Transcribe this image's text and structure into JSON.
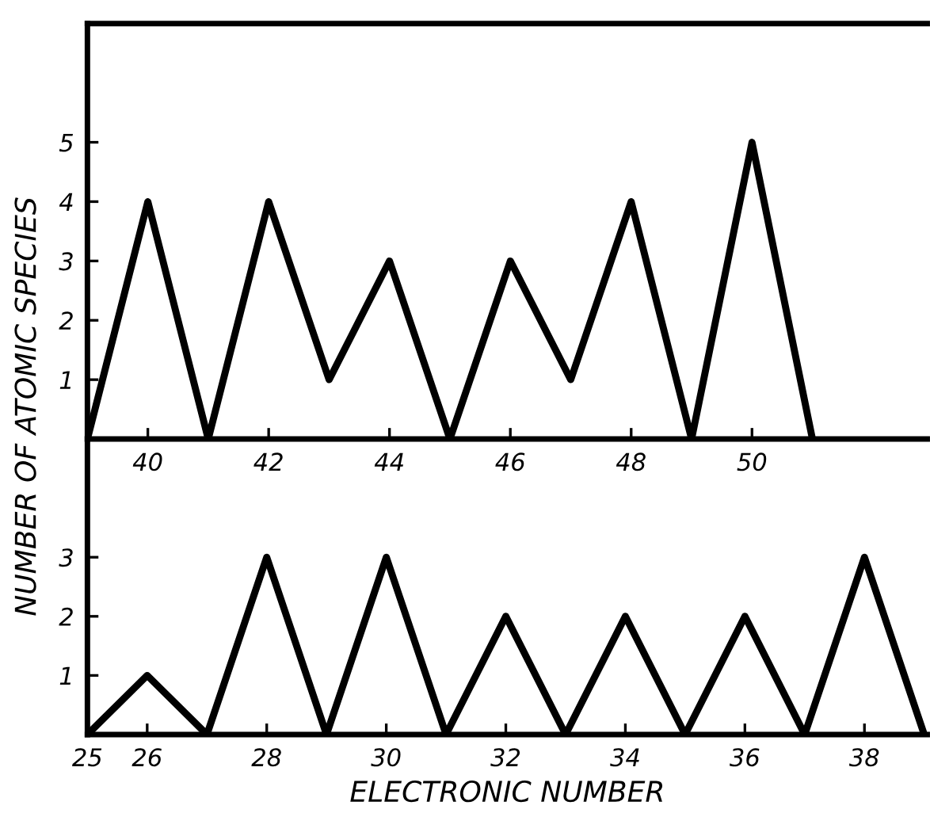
{
  "chart_data": [
    {
      "type": "line",
      "ylabel": "NUMBER OF ATOMIC SPECIES",
      "x": [
        39,
        40,
        41,
        42,
        43,
        44,
        45,
        46,
        47,
        48,
        49,
        50,
        51
      ],
      "series": [
        {
          "color": "#000000",
          "values": [
            0,
            4,
            0,
            4,
            1,
            3,
            0,
            3,
            1,
            4,
            0,
            5,
            0
          ]
        }
      ],
      "xlim": [
        39,
        52.9
      ],
      "ylim": [
        0,
        7
      ],
      "xticks": [
        40,
        42,
        44,
        46,
        48,
        50
      ],
      "yticks": [
        1,
        2,
        3,
        4,
        5
      ],
      "grid": false,
      "legend": false,
      "marker": "none",
      "line_style": "solid"
    },
    {
      "type": "line",
      "xlabel": "ELECTRONIC NUMBER",
      "x": [
        25,
        26,
        27,
        28,
        29,
        30,
        31,
        32,
        33,
        34,
        35,
        36,
        37,
        38,
        39
      ],
      "series": [
        {
          "color": "#000000",
          "values": [
            0,
            1,
            0,
            3,
            0,
            3,
            0,
            2,
            0,
            2,
            0,
            2,
            0,
            3,
            0
          ]
        }
      ],
      "xlim": [
        25,
        39.05
      ],
      "ylim": [
        0,
        5
      ],
      "xticks": [
        25,
        26,
        28,
        30,
        32,
        34,
        36,
        38
      ],
      "yticks": [
        1,
        2,
        3
      ],
      "grid": false,
      "legend": false,
      "marker": "none",
      "line_style": "solid"
    }
  ]
}
